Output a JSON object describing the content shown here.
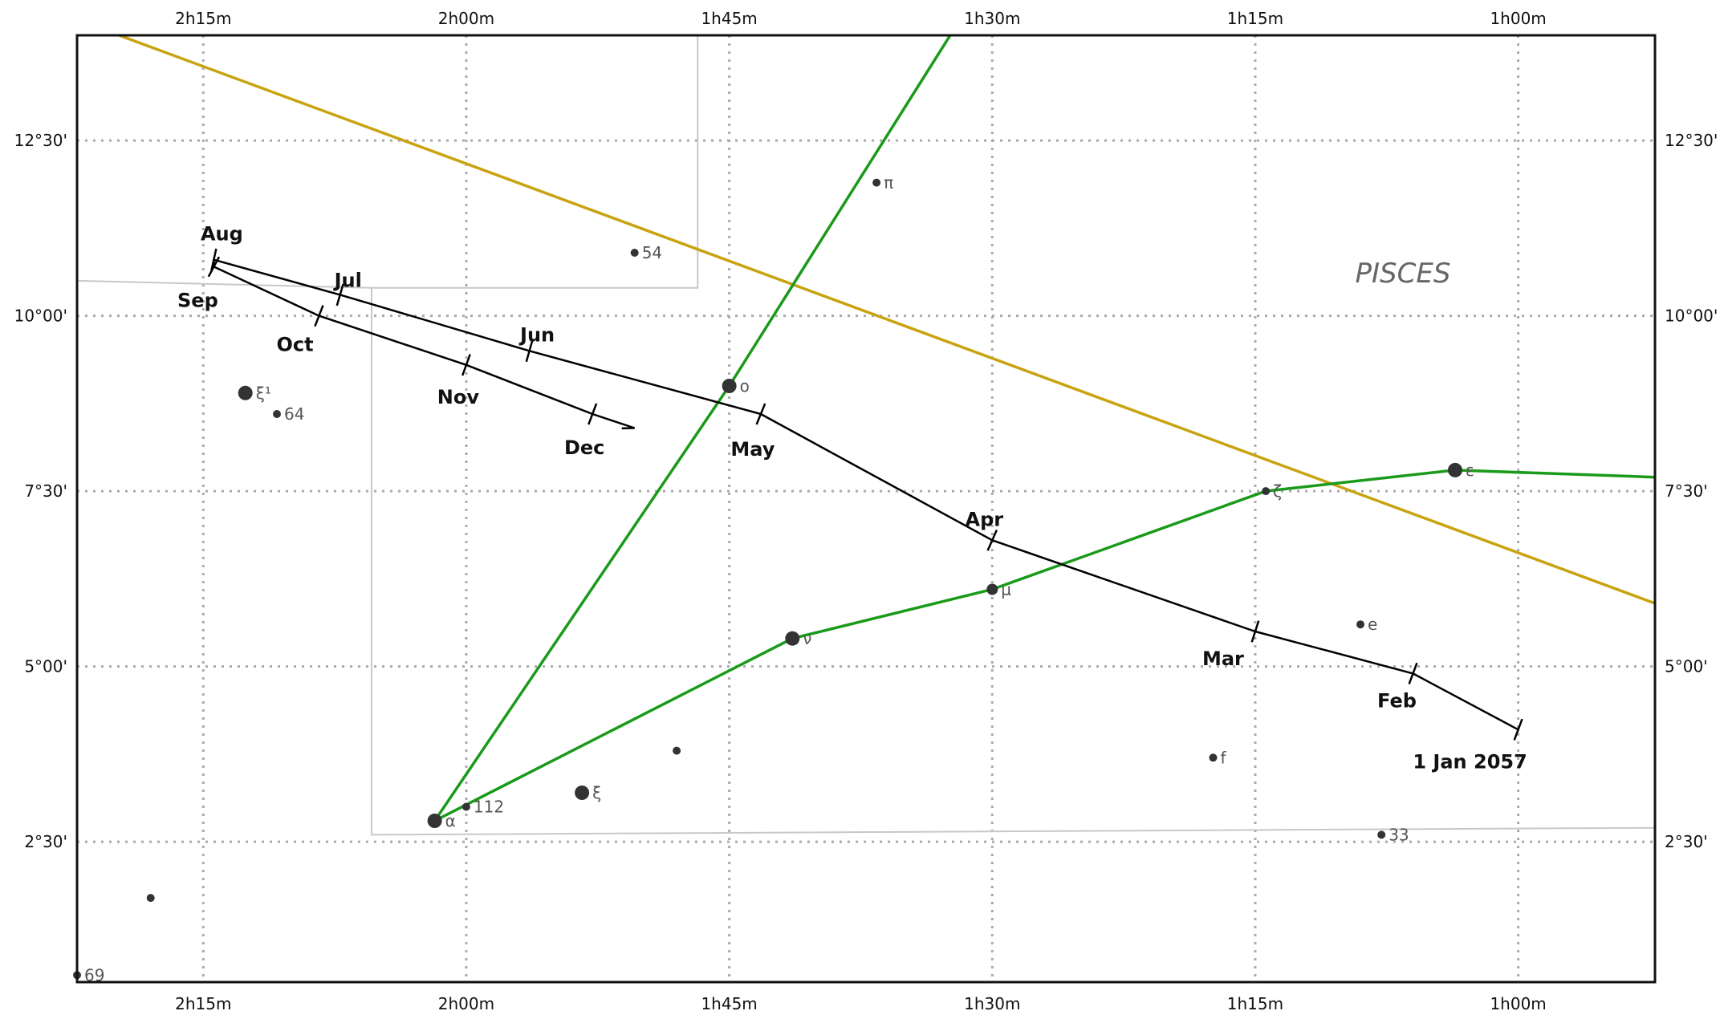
{
  "chart_data": {
    "type": "line",
    "title": "",
    "constellation_label": "PISCES",
    "axes": {
      "ra_ticks": [
        "2h15m",
        "2h00m",
        "1h45m",
        "1h30m",
        "1h15m",
        "1h00m"
      ],
      "ra_tick_values_h": [
        2.25,
        2.0,
        1.75,
        1.5,
        1.25,
        1.0
      ],
      "dec_ticks": [
        "12°30'",
        "10°00'",
        "7°30'",
        "5°00'",
        "2°30'"
      ],
      "dec_tick_values_deg": [
        12.5,
        10.0,
        7.5,
        5.0,
        2.5
      ],
      "ra_range_h": [
        2.37,
        0.87
      ],
      "dec_range_deg": [
        0.5,
        14.0
      ],
      "grid": true
    },
    "path": {
      "name": "",
      "points": [
        {
          "label": "1 Jan 2057",
          "ra_h": 1.0,
          "dec": 4.1
        },
        {
          "label": "Feb",
          "ra_h": 1.1,
          "dec": 4.9
        },
        {
          "label": "Mar",
          "ra_h": 1.25,
          "dec": 5.5
        },
        {
          "label": "Apr",
          "ra_h": 1.5,
          "dec": 6.8
        },
        {
          "label": "May",
          "ra_h": 1.72,
          "dec": 8.6
        },
        {
          "label": "Jun",
          "ra_h": 1.94,
          "dec": 9.5
        },
        {
          "label": "Jul",
          "ra_h": 2.12,
          "dec": 10.3
        },
        {
          "label": "Aug",
          "ra_h": 2.24,
          "dec": 10.8
        },
        {
          "label": "Sep",
          "ra_h": 2.24,
          "dec": 10.7
        },
        {
          "label": "Oct",
          "ra_h": 2.14,
          "dec": 10.0
        },
        {
          "label": "Nov",
          "ra_h": 2.0,
          "dec": 9.3
        },
        {
          "label": "Dec",
          "ra_h": 1.88,
          "dec": 8.6
        },
        {
          "label": "",
          "ra_h": 1.84,
          "dec": 8.4
        }
      ],
      "tick_labels": [
        "1 Jan 2057",
        "Feb",
        "Mar",
        "Apr",
        "May",
        "Jun",
        "Jul",
        "Aug",
        "Sep",
        "Oct",
        "Nov",
        "Dec"
      ]
    },
    "stars": [
      {
        "label": "π",
        "ra_h": 1.61,
        "dec": 11.9,
        "mag": "small"
      },
      {
        "label": "54",
        "ra_h": 1.84,
        "dec": 10.9,
        "mag": "small"
      },
      {
        "label": "ο",
        "ra_h": 1.75,
        "dec": 9.0,
        "mag": "large"
      },
      {
        "label": "ξ¹",
        "ra_h": 2.21,
        "dec": 8.9,
        "mag": "large"
      },
      {
        "label": "64",
        "ra_h": 2.18,
        "dec": 8.6,
        "mag": "small"
      },
      {
        "label": "ε",
        "ra_h": 1.06,
        "dec": 7.8,
        "mag": "large"
      },
      {
        "label": "ζ",
        "ra_h": 1.24,
        "dec": 7.5,
        "mag": "small"
      },
      {
        "label": "μ",
        "ra_h": 1.5,
        "dec": 6.1,
        "mag": "medium"
      },
      {
        "label": "e",
        "ra_h": 1.15,
        "dec": 5.6,
        "mag": "small"
      },
      {
        "label": "ν",
        "ra_h": 1.69,
        "dec": 5.4,
        "mag": "large"
      },
      {
        "label": "",
        "ra_h": 1.8,
        "dec": 3.8,
        "mag": "small"
      },
      {
        "label": "f",
        "ra_h": 1.29,
        "dec": 3.7,
        "mag": "small"
      },
      {
        "label": "ξ",
        "ra_h": 1.89,
        "dec": 3.2,
        "mag": "large"
      },
      {
        "label": "112",
        "ra_h": 2.0,
        "dec": 3.0,
        "mag": "small"
      },
      {
        "label": "α",
        "ra_h": 2.03,
        "dec": 2.8,
        "mag": "large"
      },
      {
        "label": "33",
        "ra_h": 1.13,
        "dec": 2.6,
        "mag": "small"
      },
      {
        "label": "",
        "ra_h": 2.3,
        "dec": 1.7,
        "mag": "small"
      },
      {
        "label": "69",
        "ra_h": 2.37,
        "dec": 0.6,
        "mag": "small"
      }
    ],
    "constellation_lines": [
      {
        "points": [
          [
            1.54,
            14.0
          ],
          [
            1.75,
            9.0
          ],
          [
            2.03,
            2.8
          ]
        ]
      },
      {
        "points": [
          [
            2.03,
            2.8
          ],
          [
            1.69,
            5.4
          ],
          [
            1.5,
            6.1
          ],
          [
            1.24,
            7.5
          ],
          [
            1.06,
            7.8
          ],
          [
            0.87,
            7.7
          ]
        ]
      }
    ],
    "ecliptic": {
      "points": [
        [
          2.33,
          14.0
        ],
        [
          0.87,
          5.9
        ]
      ]
    },
    "boundaries": [
      {
        "points": [
          [
            2.37,
            10.5
          ],
          [
            2.09,
            10.4
          ],
          [
            1.78,
            10.4
          ],
          [
            1.78,
            14.0
          ]
        ]
      },
      {
        "points": [
          [
            2.09,
            10.4
          ],
          [
            2.09,
            2.6
          ],
          [
            0.87,
            2.7
          ]
        ]
      }
    ],
    "colors": {
      "path": "#000000",
      "constellation_lines": "#1a9a1a",
      "ecliptic": "#c9a30f",
      "boundary": "#c8c8c8",
      "grid": "#aaaaaa",
      "star": "#333333"
    }
  }
}
